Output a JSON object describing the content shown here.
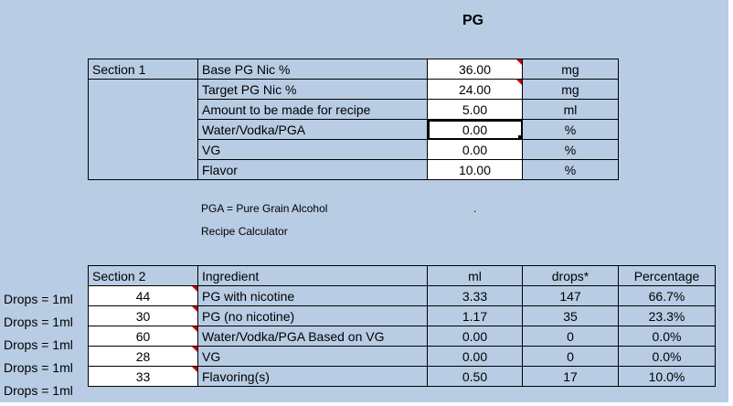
{
  "title": "PG",
  "section1": {
    "label": "Section 1",
    "rows": [
      {
        "label": "Base PG Nic %",
        "value": "36.00",
        "unit": "mg"
      },
      {
        "label": "Target PG Nic %",
        "value": "24.00",
        "unit": "mg"
      },
      {
        "label": "Amount to be made for recipe",
        "value": "5.00",
        "unit": "ml"
      },
      {
        "label": "Water/Vodka/PGA",
        "value": "0.00",
        "unit": "%"
      },
      {
        "label": "VG",
        "value": "0.00",
        "unit": "%"
      },
      {
        "label": "Flavor",
        "value": "10.00",
        "unit": "%"
      }
    ]
  },
  "notes": {
    "pga": "PGA = Pure Grain Alcohol",
    "dot": ".",
    "recipe": "Recipe Calculator"
  },
  "section2": {
    "label": "Section 2",
    "headers": {
      "ingredient": "Ingredient",
      "ml": "ml",
      "drops": "drops*",
      "percentage": "Percentage"
    },
    "side_label": "Drops = 1ml",
    "rows": [
      {
        "drops_per_ml": "44",
        "ingredient": "PG with nicotine",
        "ml": "3.33",
        "drops": "147",
        "percentage": "66.7%"
      },
      {
        "drops_per_ml": "30",
        "ingredient": "PG (no nicotine)",
        "ml": "1.17",
        "drops": "35",
        "percentage": "23.3%"
      },
      {
        "drops_per_ml": "60",
        "ingredient": "Water/Vodka/PGA Based on VG",
        "ml": "0.00",
        "drops": "0",
        "percentage": "0.0%"
      },
      {
        "drops_per_ml": "28",
        "ingredient": "VG",
        "ml": "0.00",
        "drops": "0",
        "percentage": "0.0%"
      },
      {
        "drops_per_ml": "33",
        "ingredient": "Flavoring(s)",
        "ml": "0.50",
        "drops": "17",
        "percentage": "10.0%"
      }
    ]
  }
}
